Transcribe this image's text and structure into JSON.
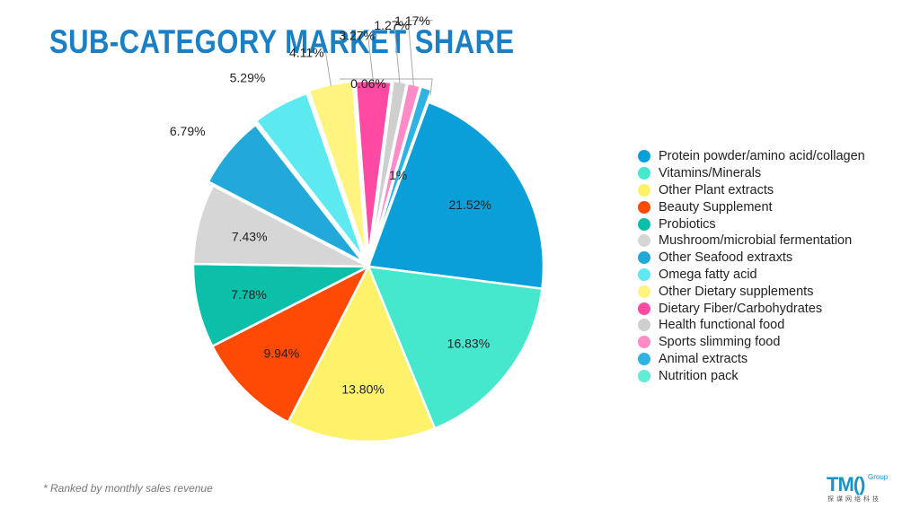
{
  "title": "SUB-CATEGORY MARKET SHARE",
  "footnote": "* Ranked by monthly sales revenue",
  "logo": {
    "main": "TM()",
    "group": "Group",
    "sub": "探谋网络科技"
  },
  "colors": {
    "title": "#1a7fc4",
    "logo": "#1a93c8",
    "leader": "#aaaaaa"
  },
  "chart_data": {
    "type": "pie",
    "title": "SUB-CATEGORY MARKET SHARE",
    "legend_position": "right",
    "slices": [
      {
        "name": "Protein powder/amino acid/collagen",
        "value": 21.52,
        "label": "21.52%",
        "color": "#0a9fd8"
      },
      {
        "name": "Vitamins/Minerals",
        "value": 16.83,
        "label": "16.83%",
        "color": "#45e8cd"
      },
      {
        "name": "Other Plant extracts",
        "value": 13.8,
        "label": "13.80%",
        "color": "#fff26b"
      },
      {
        "name": "Beauty Supplement",
        "value": 9.94,
        "label": "9.94%",
        "color": "#ff4a06"
      },
      {
        "name": "Probiotics",
        "value": 7.78,
        "label": "7.78%",
        "color": "#0cbfa8"
      },
      {
        "name": "Mushroom/microbial fermentation",
        "value": 7.43,
        "label": "7.43%",
        "color": "#d6d6d6"
      },
      {
        "name": "Other Seafood extraxts",
        "value": 6.79,
        "label": "6.79%",
        "color": "#22a9da"
      },
      {
        "name": "Omega fatty acid",
        "value": 5.29,
        "label": "5.29%",
        "color": "#5de9f0"
      },
      {
        "name": "Other Dietary supplements",
        "value": 4.11,
        "label": "4.11%",
        "color": "#fff480"
      },
      {
        "name": "Dietary Fiber/Carbohydrates",
        "value": 3.27,
        "label": "3.27%",
        "color": "#ff4aa3"
      },
      {
        "name": "Health functional food",
        "value": 1.27,
        "label": "1.27%",
        "color": "#cfcfcf"
      },
      {
        "name": "Sports slimming food",
        "value": 1.17,
        "label": "1.17%",
        "color": "#ff8cc6"
      },
      {
        "name": "Animal extracts",
        "value": 1.0,
        "label": "1%",
        "color": "#2fb3e3"
      },
      {
        "name": "Nutrition pack",
        "value": 0.06,
        "label": "0.06%",
        "color": "#62ecd6"
      }
    ]
  }
}
